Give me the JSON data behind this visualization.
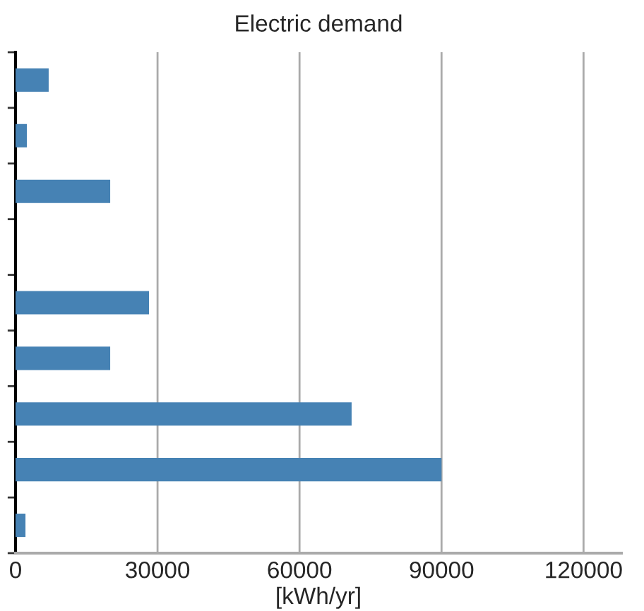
{
  "chart_data": {
    "type": "bar",
    "orientation": "horizontal",
    "title": "Electric demand",
    "xlabel": "[kWh/yr]",
    "categories": [
      null,
      null,
      null,
      null,
      null,
      null,
      null,
      null,
      null
    ],
    "values": [
      7000,
      2400,
      20000,
      0,
      28200,
      20000,
      71000,
      90000,
      2100
    ],
    "color": "#4682b4",
    "xlim": [
      0,
      128000
    ],
    "xticks": [
      0,
      30000,
      60000,
      90000,
      120000
    ],
    "grid": "x"
  }
}
